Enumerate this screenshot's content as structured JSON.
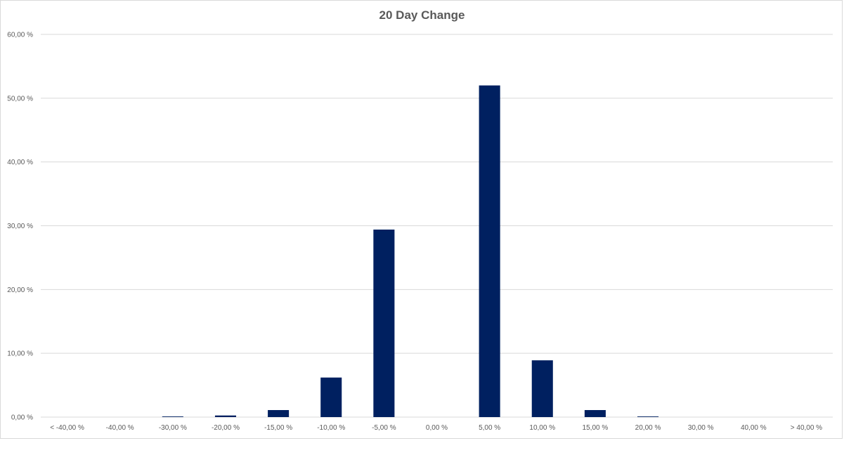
{
  "chart_data": {
    "type": "bar",
    "title": "20 Day Change",
    "categories": [
      "< -40,00 %",
      "-40,00 %",
      "-30,00 %",
      "-20,00 %",
      "-15,00 %",
      "-10,00 %",
      "-5,00 %",
      "0,00 %",
      "5,00 %",
      "10,00 %",
      "15,00 %",
      "20,00 %",
      "30,00 %",
      "40,00 %",
      "> 40,00 %"
    ],
    "values": [
      0,
      0,
      0.1,
      0.25,
      1.1,
      6.2,
      29.4,
      0,
      52.0,
      8.9,
      1.1,
      0.1,
      0,
      0,
      0
    ],
    "y_ticks": [
      "0,00 %",
      "10,00 %",
      "20,00 %",
      "30,00 %",
      "40,00 %",
      "50,00 %",
      "60,00 %"
    ],
    "ylim": [
      0,
      60
    ],
    "grid": true,
    "legend": "none",
    "bar_color": "#002060",
    "grid_color": "#d9d9d9"
  }
}
